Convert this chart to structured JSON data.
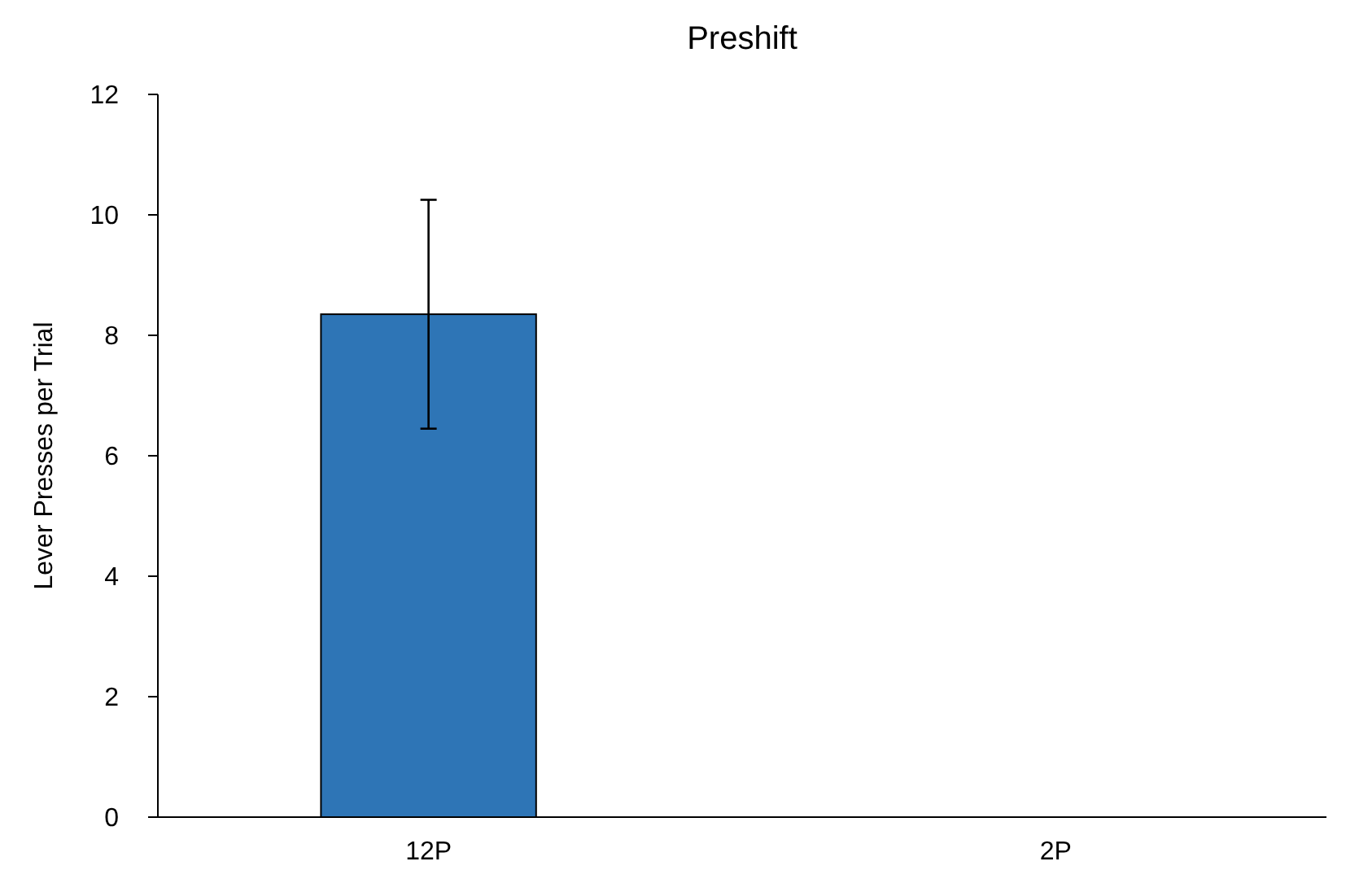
{
  "chart_data": {
    "type": "bar",
    "title": "Preshift",
    "ylabel": "Lever Presses per Trial",
    "categories": [
      "12P",
      "2P"
    ],
    "values": [
      8.35,
      null
    ],
    "errors": [
      1.9,
      null
    ],
    "color": "#2e75b6",
    "ylim": [
      0,
      12
    ],
    "yticks": [
      0,
      2,
      4,
      6,
      8,
      10,
      12
    ],
    "grid": false
  }
}
